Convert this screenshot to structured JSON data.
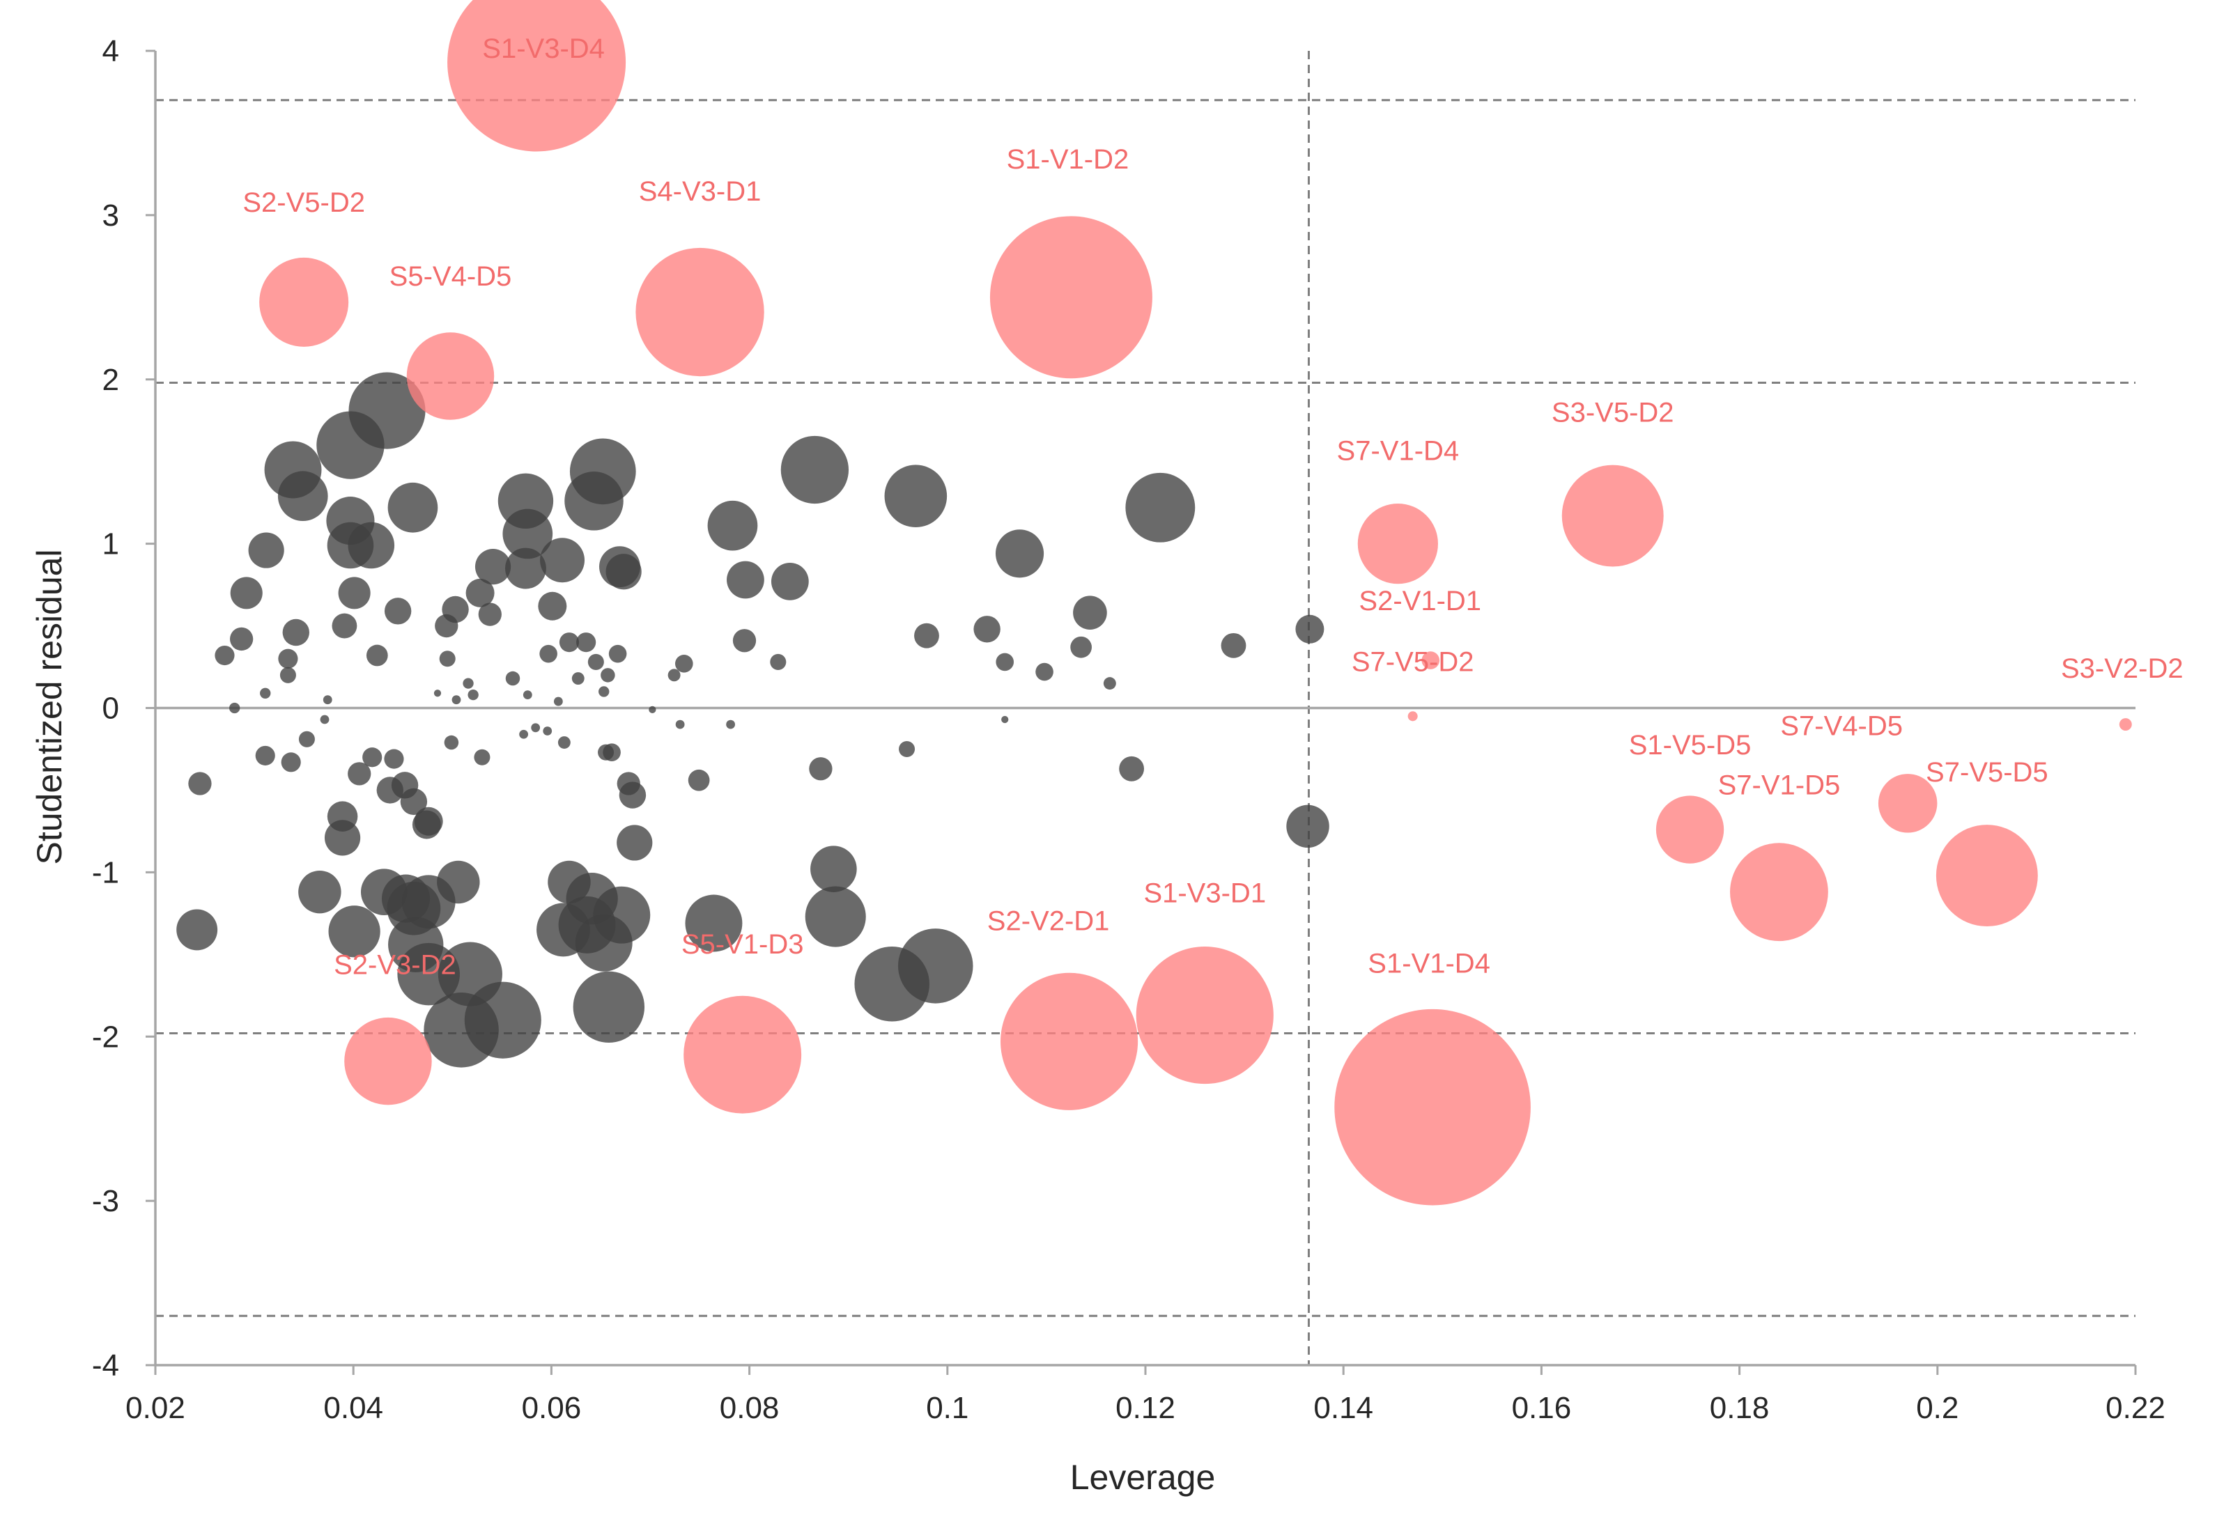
{
  "chart_data": {
    "type": "scatter",
    "subtype": "bubble",
    "title": "",
    "xlabel": "Leverage",
    "ylabel": "Studentized residual",
    "xlim": [
      0.02,
      0.22
    ],
    "ylim": [
      -4,
      4
    ],
    "x_ticks": [
      0.02,
      0.04,
      0.06,
      0.08,
      0.1,
      0.12,
      0.14,
      0.16,
      0.18,
      0.2,
      0.22
    ],
    "x_tick_labels": [
      "0.02",
      "0.04",
      "0.06",
      "0.08",
      "0.1",
      "0.12",
      "0.14",
      "0.16",
      "0.18",
      "0.2",
      "0.22"
    ],
    "y_ticks": [
      4,
      3,
      2,
      1,
      0,
      -1,
      -2,
      -3,
      -4
    ],
    "y_tick_labels": [
      "4",
      "3",
      "2",
      "1",
      "0",
      "-1",
      "-2",
      "-3",
      "-4"
    ],
    "reference_lines": {
      "horizontal": [
        3.7,
        1.98,
        -1.98,
        -3.7
      ],
      "vertical": [
        0.1365
      ],
      "zero_line": 0
    },
    "colors": {
      "outlier": "#ff8080",
      "normal": "#404040",
      "label": "#f26b6b",
      "axis": "#a6a6a6",
      "reference": "#7f7f7f"
    },
    "bubble_size_note": "z = relative bubble size (Cook's distance magnitude), data units",
    "labeled_points": [
      {
        "label": "S1-V3-D4",
        "x": 0.0585,
        "y": 3.93,
        "z": 10.0
      },
      {
        "label": "S2-V5-D2",
        "x": 0.035,
        "y": 2.47,
        "z": 5.0
      },
      {
        "label": "S5-V4-D5",
        "x": 0.0498,
        "y": 2.02,
        "z": 4.9
      },
      {
        "label": "S4-V3-D1",
        "x": 0.075,
        "y": 2.41,
        "z": 7.2
      },
      {
        "label": "S1-V1-D2",
        "x": 0.1125,
        "y": 2.5,
        "z": 9.1
      },
      {
        "label": "S7-V1-D4",
        "x": 0.1455,
        "y": 1.0,
        "z": 4.5
      },
      {
        "label": "S3-V5-D2",
        "x": 0.1672,
        "y": 1.17,
        "z": 5.7
      },
      {
        "label": "S2-V1-D1",
        "x": 0.1488,
        "y": 0.29,
        "z": 1.0
      },
      {
        "label": "S7-V5-D2",
        "x": 0.147,
        "y": -0.05,
        "z": 0.55
      },
      {
        "label": "S3-V2-D2",
        "x": 0.219,
        "y": -0.1,
        "z": 0.7
      },
      {
        "label": "S1-V5-D5",
        "x": 0.175,
        "y": -0.74,
        "z": 3.8
      },
      {
        "label": "S7-V1-D5",
        "x": 0.184,
        "y": -1.12,
        "z": 5.5
      },
      {
        "label": "S7-V4-D5",
        "x": 0.197,
        "y": -0.58,
        "z": 3.3
      },
      {
        "label": "S7-V5-D5",
        "x": 0.205,
        "y": -1.02,
        "z": 5.7
      },
      {
        "label": "S2-V2-D1",
        "x": 0.1123,
        "y": -2.03,
        "z": 7.7
      },
      {
        "label": "S1-V3-D1",
        "x": 0.126,
        "y": -1.87,
        "z": 7.7
      },
      {
        "label": "S1-V1-D4",
        "x": 0.149,
        "y": -2.43,
        "z": 11.0
      },
      {
        "label": "S5-V1-D3",
        "x": 0.0793,
        "y": -2.11,
        "z": 6.6
      },
      {
        "label": "S2-V3-D2",
        "x": 0.0435,
        "y": -2.15,
        "z": 4.9
      }
    ],
    "other_points": [
      {
        "x": 0.0434,
        "y": 1.81,
        "z": 4.3
      },
      {
        "x": 0.0397,
        "y": 1.6,
        "z": 3.8
      },
      {
        "x": 0.0339,
        "y": 1.45,
        "z": 3.2
      },
      {
        "x": 0.0349,
        "y": 1.29,
        "z": 2.8
      },
      {
        "x": 0.046,
        "y": 1.22,
        "z": 2.8
      },
      {
        "x": 0.0397,
        "y": 1.14,
        "z": 2.7
      },
      {
        "x": 0.0397,
        "y": 0.99,
        "z": 2.6
      },
      {
        "x": 0.0418,
        "y": 0.99,
        "z": 2.6
      },
      {
        "x": 0.0312,
        "y": 0.96,
        "z": 2.0
      },
      {
        "x": 0.0292,
        "y": 0.7,
        "z": 1.8
      },
      {
        "x": 0.0401,
        "y": 0.7,
        "z": 1.8
      },
      {
        "x": 0.0342,
        "y": 0.46,
        "z": 1.5
      },
      {
        "x": 0.0445,
        "y": 0.59,
        "z": 1.5
      },
      {
        "x": 0.0391,
        "y": 0.5,
        "z": 1.4
      },
      {
        "x": 0.0287,
        "y": 0.42,
        "z": 1.3
      },
      {
        "x": 0.027,
        "y": 0.32,
        "z": 1.1
      },
      {
        "x": 0.0334,
        "y": 0.3,
        "z": 1.1
      },
      {
        "x": 0.0424,
        "y": 0.32,
        "z": 1.2
      },
      {
        "x": 0.0334,
        "y": 0.2,
        "z": 0.9
      },
      {
        "x": 0.0311,
        "y": 0.09,
        "z": 0.6
      },
      {
        "x": 0.028,
        "y": 0.0,
        "z": 0.6
      },
      {
        "x": 0.0374,
        "y": 0.05,
        "z": 0.5
      },
      {
        "x": 0.0371,
        "y": -0.07,
        "z": 0.5
      },
      {
        "x": 0.0311,
        "y": -0.29,
        "z": 1.1
      },
      {
        "x": 0.0353,
        "y": -0.19,
        "z": 0.9
      },
      {
        "x": 0.0337,
        "y": -0.33,
        "z": 1.1
      },
      {
        "x": 0.0245,
        "y": -0.46,
        "z": 1.3
      },
      {
        "x": 0.0406,
        "y": -0.4,
        "z": 1.3
      },
      {
        "x": 0.0419,
        "y": -0.3,
        "z": 1.1
      },
      {
        "x": 0.0441,
        "y": -0.31,
        "z": 1.1
      },
      {
        "x": 0.0389,
        "y": -0.66,
        "z": 1.7
      },
      {
        "x": 0.0389,
        "y": -0.79,
        "z": 2.0
      },
      {
        "x": 0.0437,
        "y": -0.5,
        "z": 1.5
      },
      {
        "x": 0.0452,
        "y": -0.47,
        "z": 1.5
      },
      {
        "x": 0.0461,
        "y": -0.57,
        "z": 1.5
      },
      {
        "x": 0.0474,
        "y": -0.71,
        "z": 1.6
      },
      {
        "x": 0.0476,
        "y": -0.69,
        "z": 1.6
      },
      {
        "x": 0.0366,
        "y": -1.12,
        "z": 2.4
      },
      {
        "x": 0.0242,
        "y": -1.35,
        "z": 2.3
      },
      {
        "x": 0.0401,
        "y": -1.36,
        "z": 2.9
      },
      {
        "x": 0.0431,
        "y": -1.12,
        "z": 2.6
      },
      {
        "x": 0.0453,
        "y": -1.16,
        "z": 2.7
      },
      {
        "x": 0.0461,
        "y": -1.22,
        "z": 3.0
      },
      {
        "x": 0.0476,
        "y": -1.18,
        "z": 3.0
      },
      {
        "x": 0.0463,
        "y": -1.44,
        "z": 3.1
      },
      {
        "x": 0.0476,
        "y": -1.62,
        "z": 3.5
      },
      {
        "x": 0.0506,
        "y": -1.06,
        "z": 2.4
      },
      {
        "x": 0.0518,
        "y": -1.62,
        "z": 3.6
      },
      {
        "x": 0.0509,
        "y": -1.96,
        "z": 4.2
      },
      {
        "x": 0.0551,
        "y": -1.9,
        "z": 4.3
      },
      {
        "x": 0.0503,
        "y": 0.6,
        "z": 1.5
      },
      {
        "x": 0.0494,
        "y": 0.5,
        "z": 1.3
      },
      {
        "x": 0.0528,
        "y": 0.7,
        "z": 1.6
      },
      {
        "x": 0.0538,
        "y": 0.57,
        "z": 1.3
      },
      {
        "x": 0.0541,
        "y": 0.86,
        "z": 2.0
      },
      {
        "x": 0.0574,
        "y": 1.26,
        "z": 3.1
      },
      {
        "x": 0.0576,
        "y": 1.06,
        "z": 2.8
      },
      {
        "x": 0.0574,
        "y": 0.85,
        "z": 2.3
      },
      {
        "x": 0.0611,
        "y": 0.9,
        "z": 2.5
      },
      {
        "x": 0.0652,
        "y": 1.44,
        "z": 3.7
      },
      {
        "x": 0.0643,
        "y": 1.26,
        "z": 3.3
      },
      {
        "x": 0.0669,
        "y": 0.86,
        "z": 2.3
      },
      {
        "x": 0.0673,
        "y": 0.83,
        "z": 2.0
      },
      {
        "x": 0.0601,
        "y": 0.62,
        "z": 1.6
      },
      {
        "x": 0.0635,
        "y": 0.4,
        "z": 1.1
      },
      {
        "x": 0.0618,
        "y": 0.4,
        "z": 1.1
      },
      {
        "x": 0.0597,
        "y": 0.33,
        "z": 1.0
      },
      {
        "x": 0.0645,
        "y": 0.28,
        "z": 0.9
      },
      {
        "x": 0.0657,
        "y": 0.2,
        "z": 0.8
      },
      {
        "x": 0.0627,
        "y": 0.18,
        "z": 0.7
      },
      {
        "x": 0.0653,
        "y": 0.1,
        "z": 0.6
      },
      {
        "x": 0.0667,
        "y": 0.33,
        "z": 1.0
      },
      {
        "x": 0.0495,
        "y": 0.3,
        "z": 0.9
      },
      {
        "x": 0.0521,
        "y": 0.08,
        "z": 0.6
      },
      {
        "x": 0.0516,
        "y": 0.15,
        "z": 0.6
      },
      {
        "x": 0.0561,
        "y": 0.18,
        "z": 0.8
      },
      {
        "x": 0.0576,
        "y": 0.08,
        "z": 0.5
      },
      {
        "x": 0.0504,
        "y": 0.05,
        "z": 0.5
      },
      {
        "x": 0.0485,
        "y": 0.09,
        "z": 0.4
      },
      {
        "x": 0.0607,
        "y": 0.04,
        "z": 0.5
      },
      {
        "x": 0.0499,
        "y": -0.21,
        "z": 0.8
      },
      {
        "x": 0.053,
        "y": -0.3,
        "z": 0.9
      },
      {
        "x": 0.0572,
        "y": -0.16,
        "z": 0.5
      },
      {
        "x": 0.0584,
        "y": -0.12,
        "z": 0.5
      },
      {
        "x": 0.0596,
        "y": -0.14,
        "z": 0.5
      },
      {
        "x": 0.0613,
        "y": -0.21,
        "z": 0.7
      },
      {
        "x": 0.0655,
        "y": -0.27,
        "z": 0.9
      },
      {
        "x": 0.0661,
        "y": -0.27,
        "z": 1.0
      },
      {
        "x": 0.0678,
        "y": -0.46,
        "z": 1.3
      },
      {
        "x": 0.0682,
        "y": -0.53,
        "z": 1.5
      },
      {
        "x": 0.0684,
        "y": -0.82,
        "z": 2.0
      },
      {
        "x": 0.0618,
        "y": -1.06,
        "z": 2.4
      },
      {
        "x": 0.0612,
        "y": -1.35,
        "z": 3.0
      },
      {
        "x": 0.0636,
        "y": -1.32,
        "z": 3.2
      },
      {
        "x": 0.0641,
        "y": -1.16,
        "z": 2.9
      },
      {
        "x": 0.0671,
        "y": -1.26,
        "z": 3.2
      },
      {
        "x": 0.0653,
        "y": -1.43,
        "z": 3.2
      },
      {
        "x": 0.0658,
        "y": -1.82,
        "z": 4.0
      },
      {
        "x": 0.0734,
        "y": 0.27,
        "z": 1.0
      },
      {
        "x": 0.0724,
        "y": 0.2,
        "z": 0.7
      },
      {
        "x": 0.0702,
        "y": -0.01,
        "z": 0.4
      },
      {
        "x": 0.073,
        "y": -0.1,
        "z": 0.5
      },
      {
        "x": 0.0781,
        "y": -0.1,
        "z": 0.5
      },
      {
        "x": 0.0749,
        "y": -0.44,
        "z": 1.2
      },
      {
        "x": 0.0783,
        "y": 1.11,
        "z": 2.8
      },
      {
        "x": 0.0796,
        "y": 0.78,
        "z": 2.1
      },
      {
        "x": 0.0795,
        "y": 0.41,
        "z": 1.3
      },
      {
        "x": 0.0841,
        "y": 0.77,
        "z": 2.1
      },
      {
        "x": 0.0829,
        "y": 0.28,
        "z": 0.9
      },
      {
        "x": 0.0866,
        "y": 1.45,
        "z": 3.8
      },
      {
        "x": 0.0872,
        "y": -0.37,
        "z": 1.3
      },
      {
        "x": 0.0885,
        "y": -0.98,
        "z": 2.6
      },
      {
        "x": 0.0887,
        "y": -1.27,
        "z": 3.4
      },
      {
        "x": 0.0764,
        "y": -1.31,
        "z": 3.2
      },
      {
        "x": 0.0944,
        "y": -1.68,
        "z": 4.2
      },
      {
        "x": 0.0988,
        "y": -1.57,
        "z": 4.2
      },
      {
        "x": 0.0959,
        "y": -0.25,
        "z": 0.9
      },
      {
        "x": 0.0968,
        "y": 1.29,
        "z": 3.5
      },
      {
        "x": 0.0979,
        "y": 0.44,
        "z": 1.4
      },
      {
        "x": 0.104,
        "y": 0.48,
        "z": 1.5
      },
      {
        "x": 0.1058,
        "y": 0.28,
        "z": 1.0
      },
      {
        "x": 0.1058,
        "y": -0.07,
        "z": 0.4
      },
      {
        "x": 0.1073,
        "y": 0.94,
        "z": 2.7
      },
      {
        "x": 0.1098,
        "y": 0.22,
        "z": 1.0
      },
      {
        "x": 0.1135,
        "y": 0.37,
        "z": 1.2
      },
      {
        "x": 0.1144,
        "y": 0.58,
        "z": 1.9
      },
      {
        "x": 0.1164,
        "y": 0.15,
        "z": 0.7
      },
      {
        "x": 0.1186,
        "y": -0.37,
        "z": 1.4
      },
      {
        "x": 0.1215,
        "y": 1.22,
        "z": 3.9
      },
      {
        "x": 0.1289,
        "y": 0.38,
        "z": 1.4
      },
      {
        "x": 0.1366,
        "y": 0.48,
        "z": 1.6
      },
      {
        "x": 0.1364,
        "y": -0.72,
        "z": 2.4
      }
    ]
  }
}
